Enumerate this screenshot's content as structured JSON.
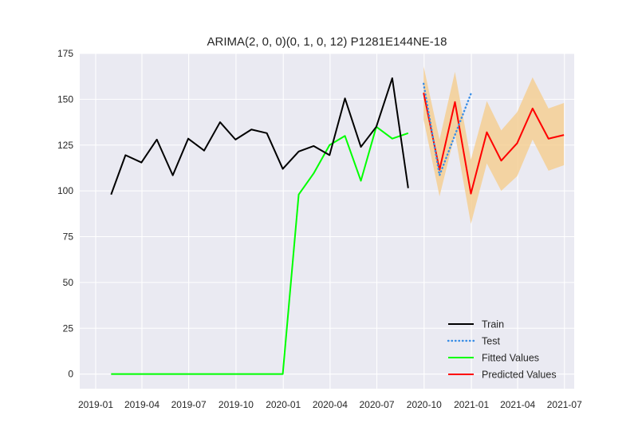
{
  "chart_data": {
    "type": "line",
    "title": "ARIMA(2, 0, 0)(0, 1, 0, 12) P1281E144NE-18",
    "xlabel": "",
    "ylabel": "",
    "x_axis": {
      "type": "date",
      "range": [
        "2018-12-01",
        "2021-07-20"
      ],
      "ticks": [
        "2019-01-01",
        "2019-04-01",
        "2019-07-01",
        "2019-10-01",
        "2020-01-01",
        "2020-04-01",
        "2020-07-01",
        "2020-10-01",
        "2021-01-01",
        "2021-04-01",
        "2021-07-01"
      ],
      "tick_labels": [
        "2019-01",
        "2019-04",
        "2019-07",
        "2019-10",
        "2020-01",
        "2020-04",
        "2020-07",
        "2020-10",
        "2021-01",
        "2021-04",
        "2021-07"
      ]
    },
    "y_axis": {
      "range": [
        -8,
        175
      ],
      "ticks": [
        0,
        25,
        50,
        75,
        100,
        125,
        150,
        175
      ],
      "tick_labels": [
        "0",
        "25",
        "50",
        "75",
        "100",
        "125",
        "150",
        "175"
      ]
    },
    "grid": true,
    "background": "#eaeaf2",
    "legend_position": "lower-right",
    "series": [
      {
        "name": "Train",
        "color": "#000000",
        "style": "solid",
        "x": [
          "2019-01-31",
          "2019-02-28",
          "2019-03-31",
          "2019-04-30",
          "2019-05-31",
          "2019-06-30",
          "2019-07-31",
          "2019-08-31",
          "2019-09-30",
          "2019-10-31",
          "2019-11-30",
          "2019-12-31",
          "2020-01-31",
          "2020-02-29",
          "2020-03-31",
          "2020-04-30",
          "2020-05-31",
          "2020-06-30",
          "2020-07-31",
          "2020-08-31"
        ],
        "y": [
          98,
          119.5,
          115.5,
          128,
          108.5,
          128.5,
          122,
          137.5,
          128,
          133.5,
          131.5,
          112,
          121.5,
          124.5,
          119.5,
          150.5,
          124,
          135,
          161.5,
          101.5
        ]
      },
      {
        "name": "Test",
        "color": "#3a8ee6",
        "style": "dotted",
        "x": [
          "2020-09-30",
          "2020-10-31",
          "2020-11-30",
          "2020-12-31"
        ],
        "y": [
          158.5,
          108.5,
          130.5,
          153
        ]
      },
      {
        "name": "Fitted Values",
        "color": "#00ff00",
        "style": "solid",
        "x": [
          "2019-01-31",
          "2019-02-28",
          "2019-03-31",
          "2019-04-30",
          "2019-05-31",
          "2019-06-30",
          "2019-07-31",
          "2019-08-31",
          "2019-09-30",
          "2019-10-31",
          "2019-11-30",
          "2019-12-31",
          "2020-01-31",
          "2020-02-29",
          "2020-03-31",
          "2020-04-30",
          "2020-05-31",
          "2020-06-30",
          "2020-07-31",
          "2020-08-31"
        ],
        "y": [
          0,
          0,
          0,
          0,
          0,
          0,
          0,
          0,
          0,
          0,
          0,
          0,
          98,
          109.5,
          125,
          130,
          105.5,
          135,
          128.5,
          131.5
        ]
      },
      {
        "name": "Predicted Values",
        "color": "#ff0000",
        "style": "solid",
        "x": [
          "2020-09-30",
          "2020-10-31",
          "2020-11-30",
          "2020-12-31",
          "2021-01-31",
          "2021-02-28",
          "2021-03-31",
          "2021-04-30",
          "2021-05-31",
          "2021-06-30"
        ],
        "y": [
          153.5,
          111.5,
          148.5,
          98.5,
          132,
          116.5,
          126,
          145,
          128.5,
          130.5
        ]
      }
    ],
    "confidence_band": {
      "color": "#f5cf94",
      "x": [
        "2020-09-30",
        "2020-10-31",
        "2020-11-30",
        "2020-12-31",
        "2021-01-31",
        "2021-02-28",
        "2021-03-31",
        "2021-04-30",
        "2021-05-31",
        "2021-06-30"
      ],
      "lower": [
        139,
        97,
        131,
        82,
        115,
        100,
        108,
        128,
        111,
        114
      ],
      "upper": [
        168,
        128,
        165,
        117,
        149,
        133,
        143,
        162,
        145,
        148
      ]
    }
  }
}
